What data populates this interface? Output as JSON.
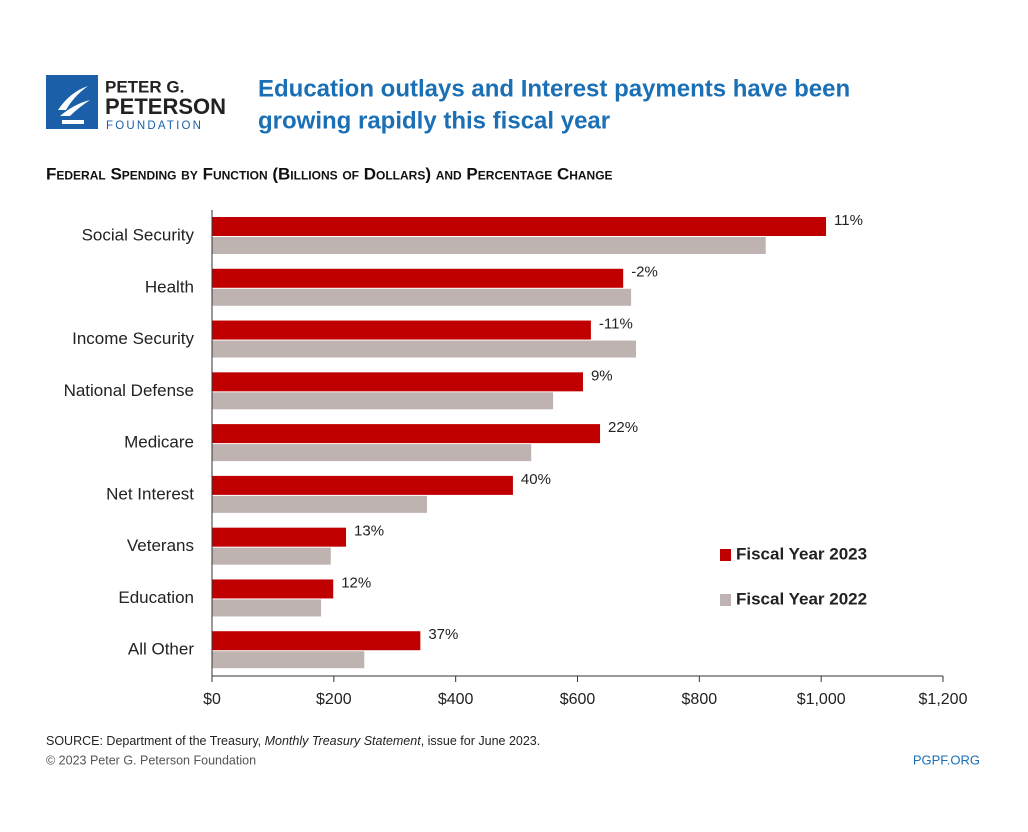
{
  "chart_data": {
    "type": "hbar",
    "logo": [
      "PETER G.",
      "PETERSON",
      "FOUNDATION"
    ],
    "title": [
      "Education outlays and Interest payments have been",
      "growing rapidly this fiscal year"
    ],
    "subtitle": "Federal Spending by Function (Billions of Dollars) and Percentage Change",
    "categories": [
      "Social Security",
      "Health",
      "Income Security",
      "National Defense",
      "Medicare",
      "Net Interest",
      "Veterans",
      "Education",
      "All Other"
    ],
    "series": [
      {
        "name": "Fiscal Year 2023",
        "color": "#c00000",
        "values": [
          1008,
          675,
          622,
          609,
          637,
          494,
          220,
          199,
          342
        ]
      },
      {
        "name": "Fiscal Year 2022",
        "color": "#bfb3b1",
        "values": [
          909,
          688,
          696,
          560,
          524,
          353,
          195,
          179,
          250
        ]
      }
    ],
    "change_labels": [
      "11%",
      "-2%",
      "-11%",
      "9%",
      "22%",
      "40%",
      "13%",
      "12%",
      "37%"
    ],
    "xlim": [
      0,
      1200
    ],
    "xticks": [
      {
        "value": 0,
        "label": "$0"
      },
      {
        "value": 200,
        "label": "$200"
      },
      {
        "value": 400,
        "label": "$400"
      },
      {
        "value": 600,
        "label": "$600"
      },
      {
        "value": 800,
        "label": "$800"
      },
      {
        "value": 1000,
        "label": "$1,000"
      },
      {
        "value": 1200,
        "label": "$1,200"
      }
    ],
    "source": [
      "SOURCE: Department of the Treasury, ",
      "Monthly Treasury Statement",
      ", issue for June 2023."
    ],
    "copyright": "© 2023 Peter G. Peterson Foundation",
    "website": "PGPF.ORG"
  }
}
